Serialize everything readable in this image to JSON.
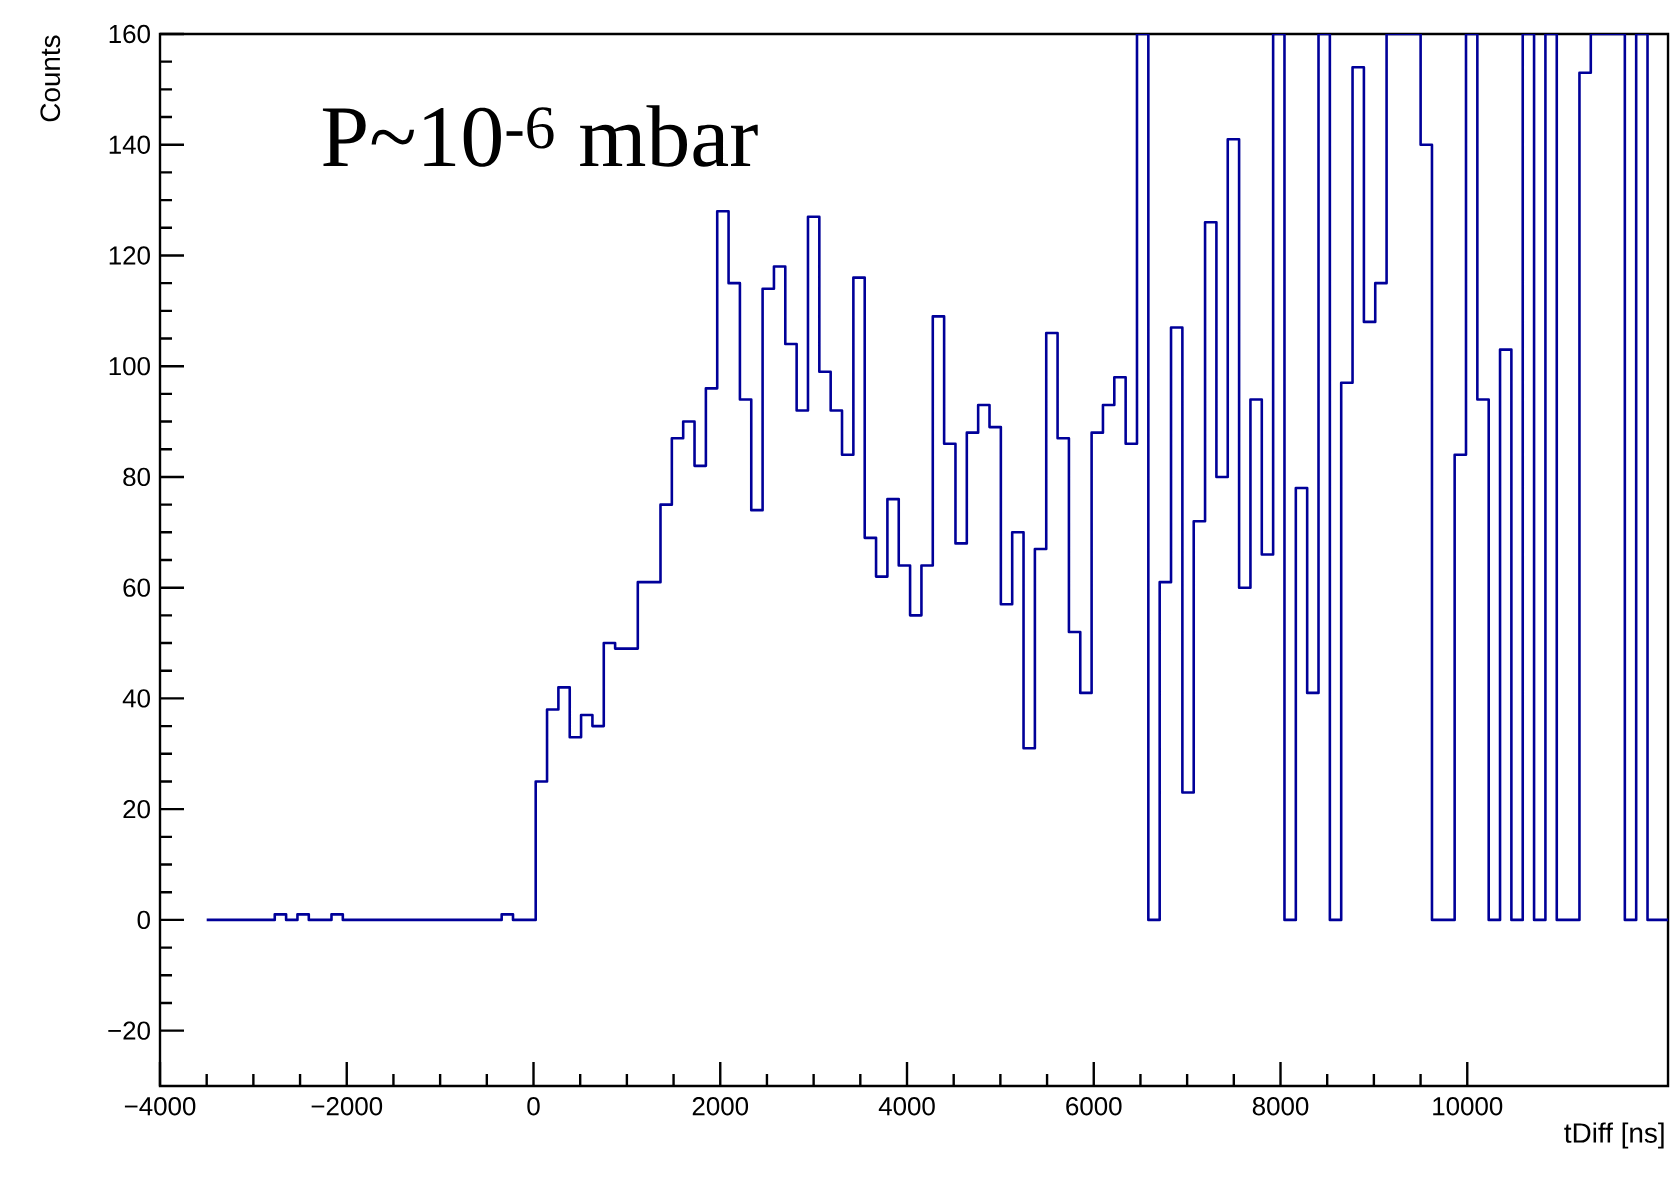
{
  "chart_data": {
    "type": "histogram",
    "title": "P~10$^{-6}$ mbar",
    "xlabel": "tDiff [ns]",
    "ylabel": "Counts",
    "color": "#000099",
    "xlim": [
      -4000,
      12150
    ],
    "ylim": [
      -30,
      160
    ],
    "xticks": [
      {
        "value": -4000,
        "label": "−4000"
      },
      {
        "value": -2000,
        "label": "−2000"
      },
      0,
      2000,
      4000,
      6000,
      8000,
      10000
    ],
    "yticks": [
      {
        "value": -20,
        "label": "−20"
      },
      0,
      20,
      40,
      60,
      80,
      100,
      120,
      140,
      160
    ],
    "bins": [
      -3500,
      -3378.5,
      -3257,
      -3135.5,
      -3014,
      -2892.5,
      -2771,
      -2649.5,
      -2528,
      -2406.5,
      -2285,
      -2163.5,
      -2042,
      -1920.5,
      -1799,
      -1677.5,
      -1556,
      -1434.5,
      -1313,
      -1191.5,
      -1070,
      -948.5,
      -827,
      -705.5,
      -584,
      -462.5,
      -341,
      -219.5,
      -98,
      23.5,
      145,
      266.5,
      388,
      509.5,
      631,
      752.5,
      874,
      995.5,
      1117,
      1238.5,
      1360,
      1481.5,
      1603,
      1724.5,
      1846,
      1967.5,
      2089,
      2210.5,
      2332,
      2453.5,
      2575,
      2696.5,
      2818,
      2939.5,
      3061,
      3182.5,
      3304,
      3425.5,
      3547,
      3668.5,
      3790,
      3911.5,
      4033,
      4154.5,
      4276,
      4397.5,
      4519,
      4640.5,
      4762,
      4883.5,
      5005,
      5126.5,
      5248,
      5369.5,
      5491,
      5612.5,
      5734,
      5855.5,
      5977,
      6098.5,
      6220,
      6341.5,
      6463,
      6584.5,
      6706,
      6827.5,
      6949,
      7070.5,
      7192,
      7313.5,
      7435,
      7556.5,
      7678,
      7799.5,
      7921,
      8042.5,
      8164,
      8285.5,
      8407,
      8528.5,
      8650,
      8771.5,
      8893,
      9014.5,
      9136,
      9257.5,
      9379,
      9500.5,
      9622,
      9743.5,
      9865,
      9986.5,
      10108,
      10229.5,
      10351,
      10472.5,
      10594,
      10715.5,
      10837,
      10958.5,
      11080,
      11201.5,
      11323,
      11444.5,
      11566,
      11687.5,
      11809,
      11930.5,
      12150
    ],
    "values": [
      0,
      0,
      0,
      0,
      0,
      0,
      1,
      0,
      1,
      0,
      0,
      1,
      0,
      0,
      0,
      0,
      0,
      0,
      0,
      0,
      0,
      0,
      0,
      0,
      0,
      0,
      1,
      0,
      0,
      25,
      38,
      42,
      33,
      37,
      35,
      50,
      49,
      49,
      61,
      61,
      75,
      87,
      90,
      82,
      96,
      128,
      115,
      94,
      74,
      114,
      118,
      104,
      92,
      127,
      99,
      92,
      84,
      116,
      69,
      62,
      76,
      64,
      55,
      64,
      109,
      86,
      68,
      88,
      93,
      89,
      57,
      70,
      31,
      67,
      106,
      87,
      52,
      41,
      88,
      93,
      98,
      86,
      160,
      0,
      61,
      107,
      23,
      72,
      126,
      80,
      141,
      60,
      94,
      66,
      160,
      0,
      78,
      41,
      160,
      0,
      97,
      154,
      108,
      115,
      160,
      160,
      160,
      140,
      0,
      0,
      84,
      160,
      94,
      0,
      103,
      0,
      160,
      0,
      160,
      0,
      0,
      153,
      160,
      160,
      160,
      0,
      160,
      0
    ]
  }
}
